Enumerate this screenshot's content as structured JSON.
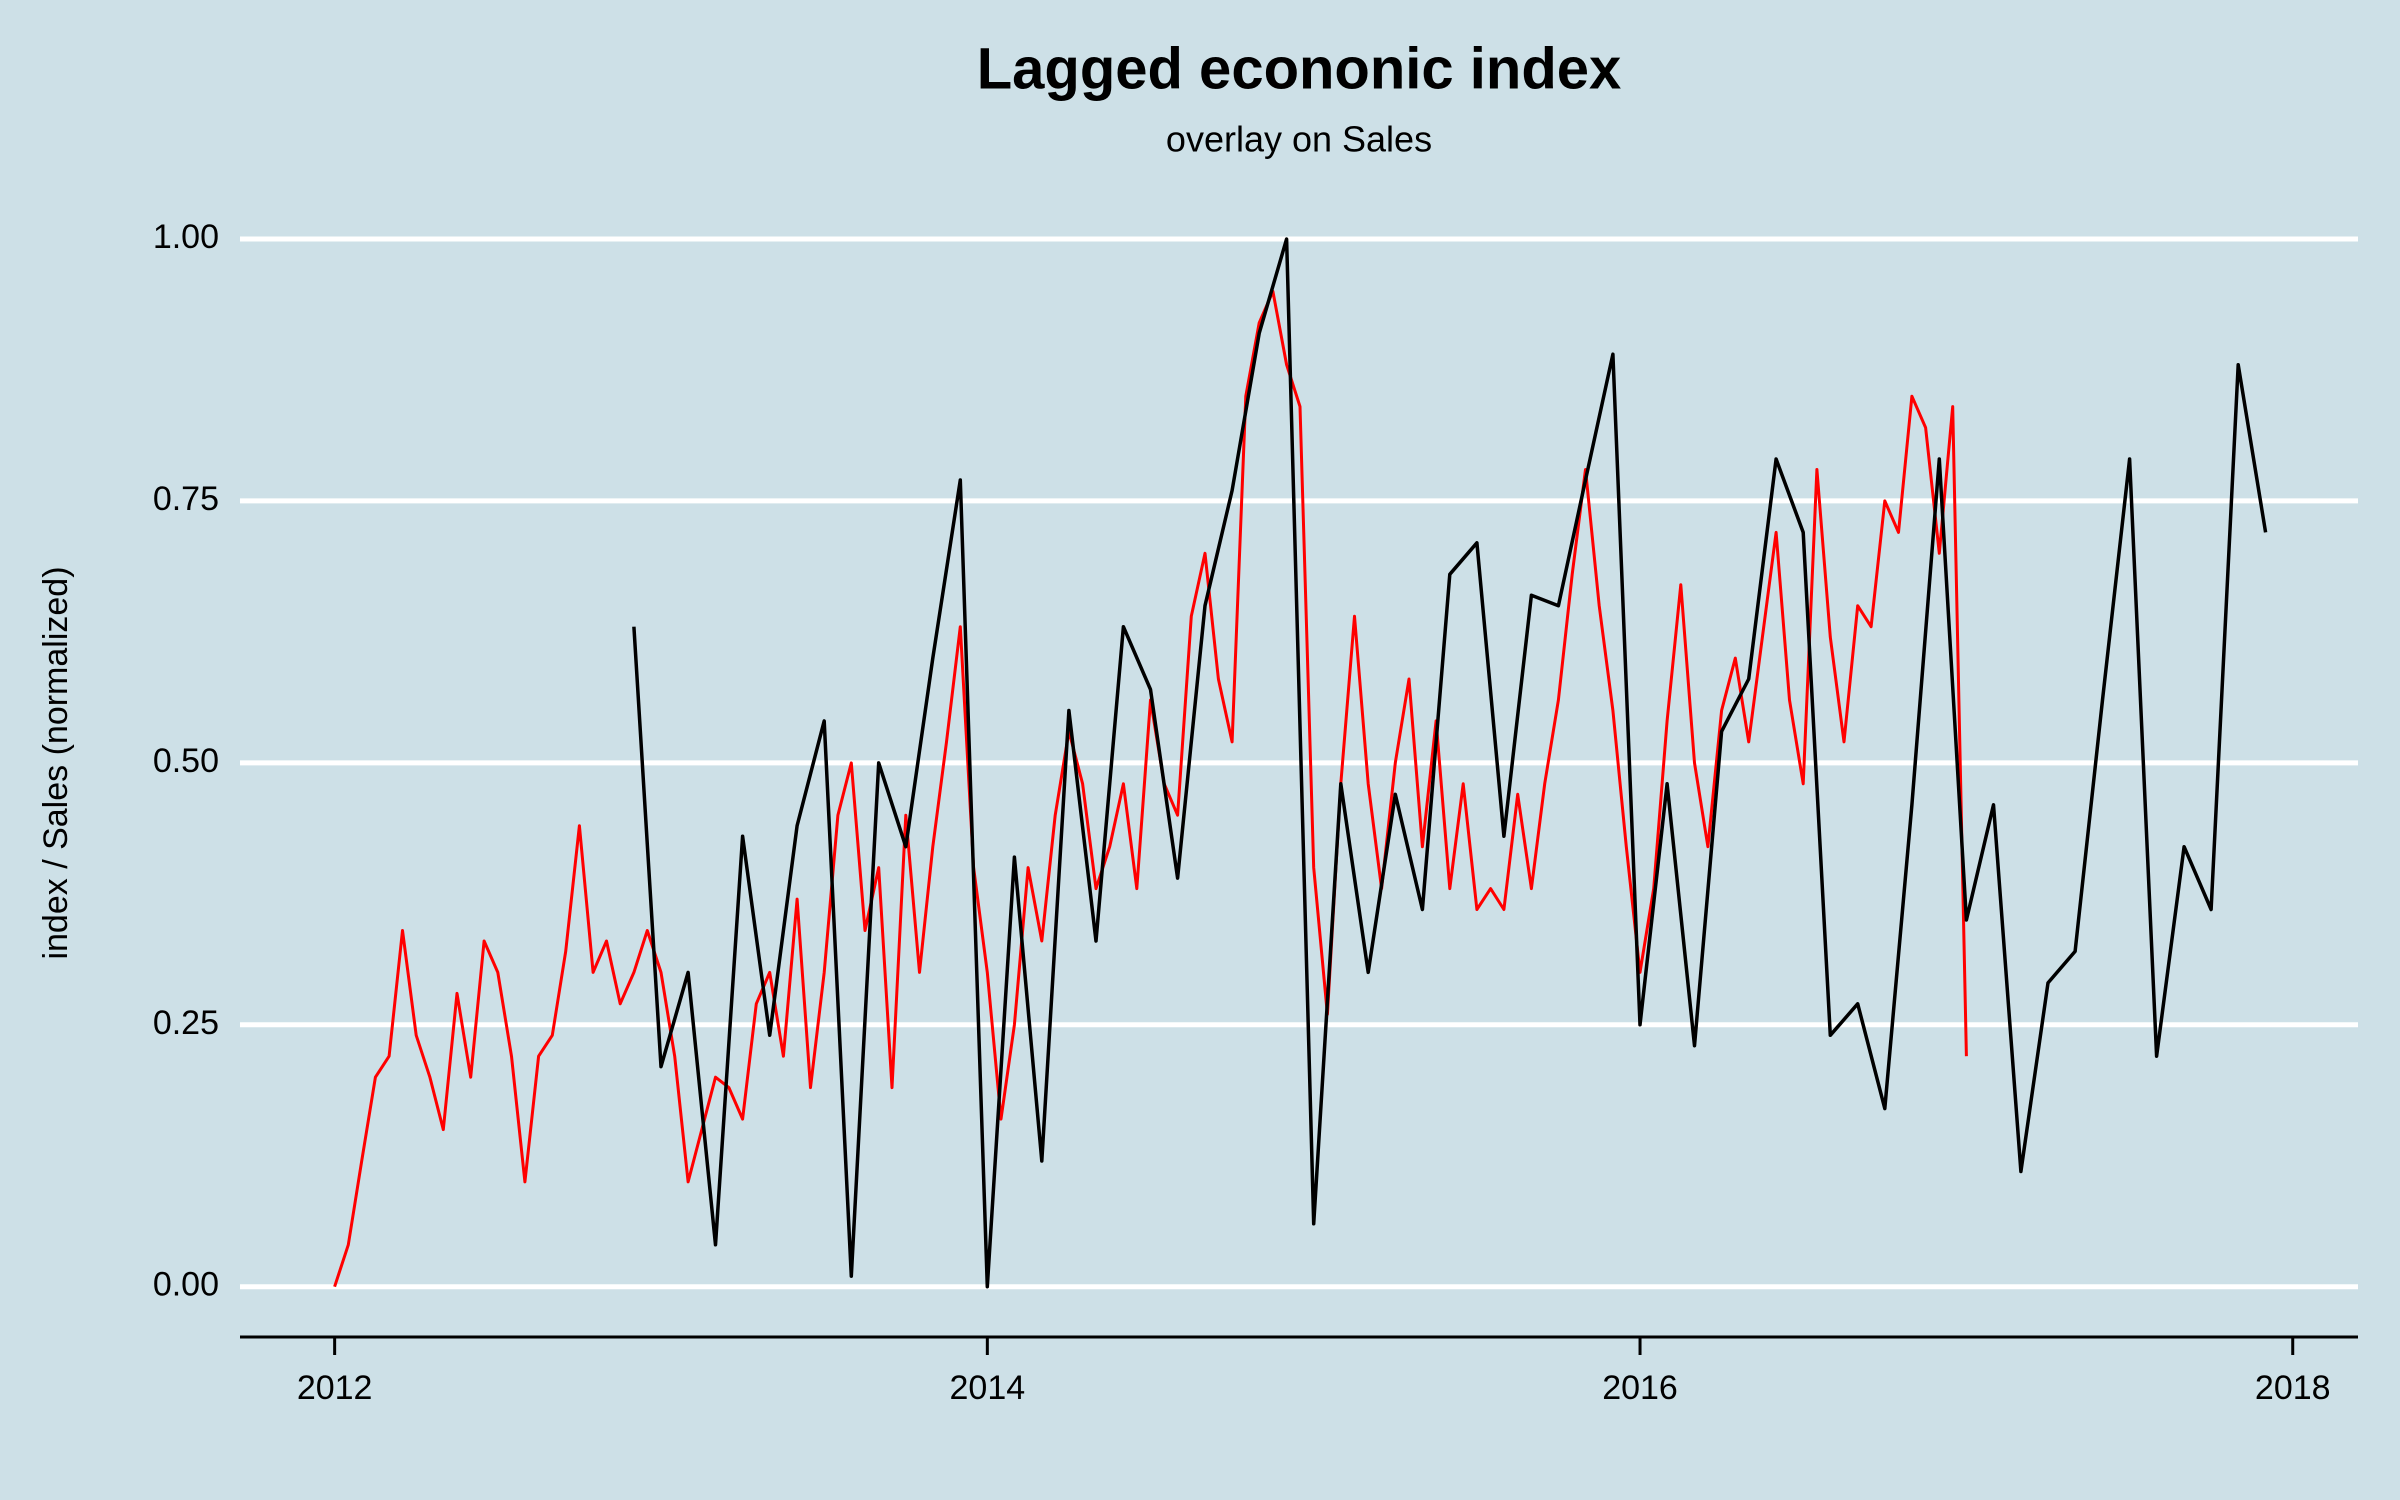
{
  "chart_data": {
    "type": "line",
    "title": "Lagged econonic index",
    "subtitle": "overlay on Sales",
    "y_label": "index / Sales (normalized)",
    "xlim": [
      2011.71,
      2018.2
    ],
    "xticks": [
      2012,
      2014,
      2016,
      2018
    ],
    "ylim": [
      -0.048,
      1.0
    ],
    "yticks": [
      {
        "value": 0,
        "label": "0.00"
      },
      {
        "value": 0.25,
        "label": "0.25"
      },
      {
        "value": 0.5,
        "label": "0.50"
      },
      {
        "value": 0.75,
        "label": "0.75"
      },
      {
        "value": 1,
        "label": "1.00"
      }
    ],
    "grid": true,
    "series": [
      {
        "color": "#ff0000",
        "x": [
          2012,
          2012.042,
          2012.083,
          2012.125,
          2012.167,
          2012.208,
          2012.25,
          2012.292,
          2012.333,
          2012.375,
          2012.417,
          2012.458,
          2012.5,
          2012.542,
          2012.583,
          2012.625,
          2012.667,
          2012.708,
          2012.75,
          2012.792,
          2012.833,
          2012.875,
          2012.917,
          2012.958,
          2013,
          2013.042,
          2013.083,
          2013.125,
          2013.167,
          2013.208,
          2013.25,
          2013.292,
          2013.333,
          2013.375,
          2013.417,
          2013.458,
          2013.5,
          2013.542,
          2013.583,
          2013.625,
          2013.667,
          2013.708,
          2013.75,
          2013.792,
          2013.833,
          2013.875,
          2013.917,
          2013.958,
          2014,
          2014.042,
          2014.083,
          2014.125,
          2014.167,
          2014.208,
          2014.25,
          2014.292,
          2014.333,
          2014.375,
          2014.417,
          2014.458,
          2014.5,
          2014.542,
          2014.583,
          2014.625,
          2014.667,
          2014.708,
          2014.75,
          2014.792,
          2014.833,
          2014.875,
          2014.917,
          2014.958,
          2015,
          2015.042,
          2015.083,
          2015.125,
          2015.167,
          2015.208,
          2015.25,
          2015.292,
          2015.333,
          2015.375,
          2015.417,
          2015.458,
          2015.5,
          2015.542,
          2015.583,
          2015.625,
          2015.667,
          2015.708,
          2015.75,
          2015.792,
          2015.833,
          2015.875,
          2015.917,
          2015.958,
          2016,
          2016.042,
          2016.083,
          2016.125,
          2016.167,
          2016.208,
          2016.25,
          2016.292,
          2016.333,
          2016.375,
          2016.417,
          2016.458,
          2016.5,
          2016.542,
          2016.583,
          2016.625,
          2016.667,
          2016.708,
          2016.75,
          2016.792,
          2016.833,
          2016.875,
          2016.917,
          2016.958,
          2017
        ],
        "values": [
          0.0,
          0.04,
          0.12,
          0.2,
          0.22,
          0.34,
          0.24,
          0.2,
          0.15,
          0.28,
          0.2,
          0.33,
          0.3,
          0.22,
          0.1,
          0.22,
          0.24,
          0.32,
          0.44,
          0.3,
          0.33,
          0.27,
          0.3,
          0.34,
          0.3,
          0.22,
          0.1,
          0.15,
          0.2,
          0.19,
          0.16,
          0.27,
          0.3,
          0.22,
          0.37,
          0.19,
          0.3,
          0.45,
          0.5,
          0.34,
          0.4,
          0.19,
          0.45,
          0.3,
          0.42,
          0.52,
          0.63,
          0.4,
          0.3,
          0.16,
          0.25,
          0.4,
          0.33,
          0.45,
          0.53,
          0.48,
          0.38,
          0.42,
          0.48,
          0.38,
          0.56,
          0.48,
          0.45,
          0.64,
          0.7,
          0.58,
          0.52,
          0.85,
          0.92,
          0.95,
          0.88,
          0.84,
          0.4,
          0.26,
          0.48,
          0.64,
          0.48,
          0.38,
          0.5,
          0.58,
          0.42,
          0.54,
          0.38,
          0.48,
          0.36,
          0.38,
          0.36,
          0.47,
          0.38,
          0.48,
          0.56,
          0.68,
          0.78,
          0.65,
          0.55,
          0.42,
          0.3,
          0.38,
          0.54,
          0.67,
          0.5,
          0.42,
          0.55,
          0.6,
          0.52,
          0.62,
          0.72,
          0.56,
          0.48,
          0.78,
          0.62,
          0.52,
          0.65,
          0.63,
          0.75,
          0.72,
          0.85,
          0.82,
          0.7,
          0.84,
          0.22
        ]
      },
      {
        "color": "#000000",
        "x": [
          2012.917,
          2013,
          2013.083,
          2013.167,
          2013.25,
          2013.333,
          2013.417,
          2013.5,
          2013.583,
          2013.667,
          2013.75,
          2013.833,
          2013.917,
          2014,
          2014.083,
          2014.167,
          2014.25,
          2014.333,
          2014.417,
          2014.5,
          2014.583,
          2014.667,
          2014.75,
          2014.833,
          2014.917,
          2015,
          2015.083,
          2015.167,
          2015.25,
          2015.333,
          2015.417,
          2015.5,
          2015.583,
          2015.667,
          2015.75,
          2015.833,
          2015.917,
          2016,
          2016.083,
          2016.167,
          2016.25,
          2016.333,
          2016.417,
          2016.5,
          2016.583,
          2016.667,
          2016.75,
          2016.833,
          2016.917,
          2017,
          2017.083,
          2017.167,
          2017.25,
          2017.333,
          2017.417,
          2017.5,
          2017.583,
          2017.667,
          2017.75,
          2017.833,
          2017.917
        ],
        "values": [
          0.63,
          0.21,
          0.3,
          0.04,
          0.43,
          0.24,
          0.44,
          0.54,
          0.01,
          0.5,
          0.42,
          0.6,
          0.77,
          0.0,
          0.41,
          0.12,
          0.55,
          0.33,
          0.63,
          0.57,
          0.39,
          0.65,
          0.76,
          0.91,
          1.0,
          0.06,
          0.48,
          0.3,
          0.47,
          0.36,
          0.68,
          0.71,
          0.43,
          0.66,
          0.65,
          0.77,
          0.89,
          0.25,
          0.48,
          0.23,
          0.53,
          0.58,
          0.79,
          0.72,
          0.24,
          0.27,
          0.17,
          0.46,
          0.79,
          0.35,
          0.46,
          0.11,
          0.29,
          0.32,
          0.56,
          0.79,
          0.22,
          0.42,
          0.36,
          0.88,
          0.72
        ]
      }
    ]
  }
}
